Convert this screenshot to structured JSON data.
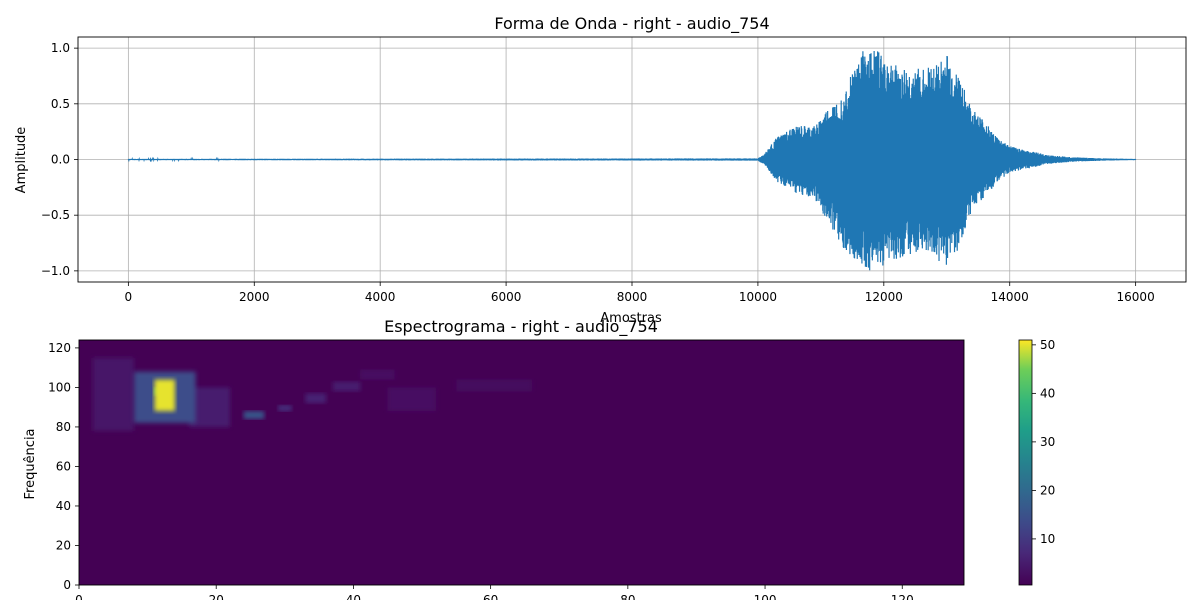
{
  "chart_data": [
    {
      "type": "line",
      "title": "Forma de Onda - right - audio_754",
      "xlabel": "Amostras",
      "ylabel": "Amplitude",
      "xlim": [
        -800,
        16800
      ],
      "ylim": [
        -1.1,
        1.1
      ],
      "xticks": [
        0,
        2000,
        4000,
        6000,
        8000,
        10000,
        12000,
        14000,
        16000
      ],
      "xtick_labels": [
        "0",
        "2000",
        "4000",
        "6000",
        "8000",
        "10000",
        "12000",
        "14000",
        "16000"
      ],
      "yticks": [
        -1.0,
        -0.5,
        0.0,
        0.5,
        1.0
      ],
      "ytick_labels": [
        "−1.0",
        "−0.5",
        "0.0",
        "0.5",
        "1.0"
      ],
      "grid": true,
      "color": "#1f77b4",
      "series": [
        {
          "envelope": {
            "x": [
              0,
              10000,
              10100,
              10300,
              10600,
              10900,
              11100,
              11300,
              11500,
              11650,
              11800,
              12000,
              12200,
              12400,
              12600,
              12800,
              13000,
              13200,
              13400,
              13600,
              13800,
              14000,
              14300,
              14600,
              15000,
              15500,
              16000
            ],
            "upper": [
              0.005,
              0.01,
              0.05,
              0.2,
              0.3,
              0.3,
              0.45,
              0.55,
              0.8,
              1.0,
              1.0,
              0.95,
              0.85,
              0.8,
              0.82,
              0.85,
              0.95,
              0.75,
              0.45,
              0.35,
              0.2,
              0.12,
              0.08,
              0.04,
              0.02,
              0.01,
              0.005
            ],
            "lower": [
              -0.005,
              -0.01,
              -0.05,
              -0.2,
              -0.3,
              -0.35,
              -0.55,
              -0.75,
              -0.9,
              -1.0,
              -1.0,
              -0.95,
              -0.9,
              -0.85,
              -0.85,
              -0.9,
              -0.95,
              -0.8,
              -0.45,
              -0.35,
              -0.2,
              -0.12,
              -0.08,
              -0.04,
              -0.02,
              -0.01,
              -0.005
            ]
          }
        }
      ]
    },
    {
      "type": "heatmap",
      "title": "Espectrograma - right - audio_754",
      "xlabel": "",
      "ylabel": "Frequência",
      "xlim": [
        0,
        129
      ],
      "ylim": [
        0,
        124
      ],
      "xticks": [
        0,
        20,
        40,
        60,
        80,
        100,
        120
      ],
      "xtick_labels": [
        "0",
        "20",
        "40",
        "60",
        "80",
        "100",
        "120"
      ],
      "yticks": [
        0,
        20,
        40,
        60,
        80,
        100,
        120
      ],
      "ytick_labels": [
        "0",
        "20",
        "40",
        "60",
        "80",
        "100",
        "120"
      ],
      "colormap": "viridis",
      "background_value": 0,
      "hotspots": [
        {
          "x0": 11,
          "x1": 14,
          "y0": 88,
          "y1": 104,
          "value": 50
        },
        {
          "x0": 11,
          "x1": 13,
          "y0": 96,
          "y1": 100,
          "value": 42
        },
        {
          "x0": 8,
          "x1": 17,
          "y0": 82,
          "y1": 108,
          "value": 14
        },
        {
          "x0": 24,
          "x1": 27,
          "y0": 84,
          "y1": 88,
          "value": 16
        },
        {
          "x0": 29,
          "x1": 31,
          "y0": 88,
          "y1": 91,
          "value": 9
        },
        {
          "x0": 33,
          "x1": 36,
          "y0": 92,
          "y1": 97,
          "value": 6
        },
        {
          "x0": 37,
          "x1": 41,
          "y0": 98,
          "y1": 103,
          "value": 5
        },
        {
          "x0": 41,
          "x1": 46,
          "y0": 104,
          "y1": 109,
          "value": 3
        },
        {
          "x0": 55,
          "x1": 66,
          "y0": 98,
          "y1": 104,
          "value": 2.5
        },
        {
          "x0": 2,
          "x1": 8,
          "y0": 78,
          "y1": 115,
          "value": 4
        },
        {
          "x0": 16,
          "x1": 22,
          "y0": 80,
          "y1": 100,
          "value": 5
        },
        {
          "x0": 45,
          "x1": 52,
          "y0": 88,
          "y1": 100,
          "value": 3
        }
      ],
      "colorbar": {
        "range": [
          0.5,
          51
        ],
        "ticks": [
          10,
          20,
          30,
          40,
          50
        ],
        "tick_labels": [
          "10",
          "20",
          "30",
          "40",
          "50"
        ]
      }
    }
  ]
}
